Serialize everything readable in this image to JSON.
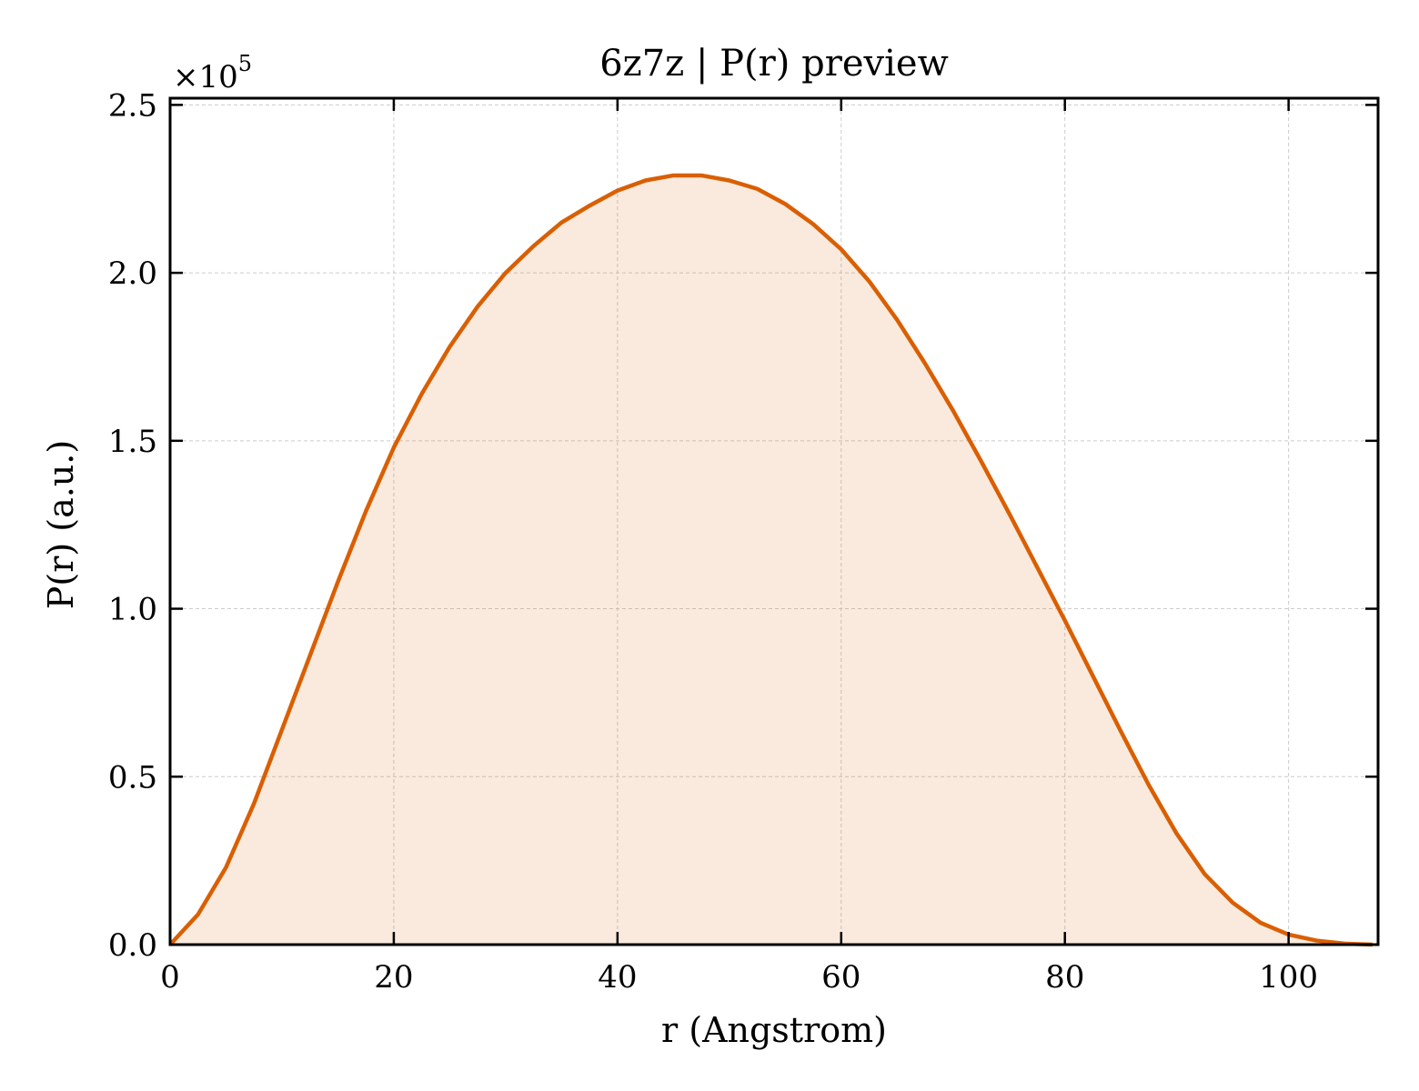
{
  "chart_data": {
    "type": "area",
    "title": "6z7z | P(r) preview",
    "xlabel": "r (Angstrom)",
    "ylabel": "P(r) (a.u.)",
    "y_offset_label": "×10",
    "y_offset_exponent": "5",
    "y_scale_factor": 100000,
    "xlim": [
      0,
      108
    ],
    "ylim": [
      0,
      2.52
    ],
    "xticks": [
      0,
      20,
      40,
      60,
      80,
      100
    ],
    "xtick_labels": [
      "0",
      "20",
      "40",
      "60",
      "80",
      "100"
    ],
    "yticks": [
      0.0,
      0.5,
      1.0,
      1.5,
      2.0,
      2.5
    ],
    "ytick_labels": [
      "0.0",
      "0.5",
      "1.0",
      "1.5",
      "2.0",
      "2.5"
    ],
    "grid": true,
    "colors": {
      "line": "#d95f02",
      "fill": "#d95f02"
    },
    "series": [
      {
        "x": [
          0,
          2.5,
          5,
          7.5,
          10,
          12.5,
          15,
          17.5,
          20,
          22.5,
          25,
          27.5,
          30,
          32.5,
          35,
          37.5,
          40,
          42.5,
          45,
          47.5,
          50,
          52.5,
          55,
          57.5,
          60,
          62.5,
          65,
          67.5,
          70,
          72.5,
          75,
          77.5,
          80,
          82.5,
          85,
          87.5,
          90,
          92.5,
          95,
          97.5,
          100,
          102.5,
          105,
          107.5
        ],
        "y": [
          0.0,
          0.09,
          0.23,
          0.42,
          0.64,
          0.86,
          1.08,
          1.29,
          1.48,
          1.64,
          1.78,
          1.9,
          2.0,
          2.08,
          2.15,
          2.2,
          2.245,
          2.275,
          2.29,
          2.29,
          2.275,
          2.25,
          2.205,
          2.145,
          2.07,
          1.975,
          1.86,
          1.73,
          1.59,
          1.44,
          1.285,
          1.125,
          0.965,
          0.8,
          0.635,
          0.475,
          0.33,
          0.21,
          0.125,
          0.065,
          0.03,
          0.012,
          0.003,
          0.0
        ]
      }
    ]
  }
}
